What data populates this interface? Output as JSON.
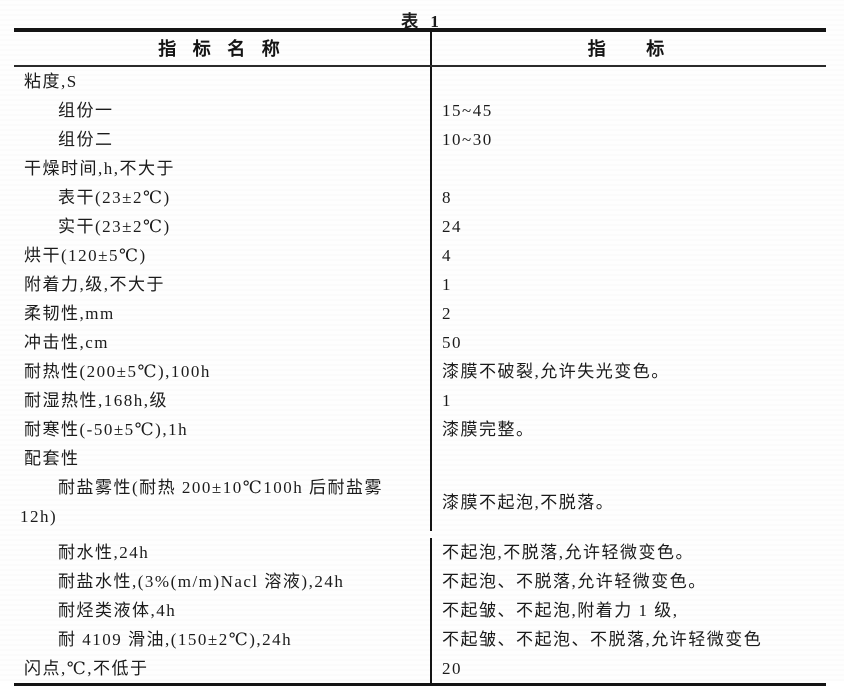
{
  "title": "表 1",
  "table": {
    "col1_header": "指 标 名 称",
    "col2_header": "指　 标",
    "rows": [
      {
        "label": "粘度,S",
        "indent": 0,
        "value": ""
      },
      {
        "label": "组份一",
        "indent": 1,
        "value": "15~45"
      },
      {
        "label": "组份二",
        "indent": 1,
        "value": "10~30"
      },
      {
        "label": "干燥时间,h,不大于",
        "indent": 0,
        "value": ""
      },
      {
        "label": "表干(23±2℃)",
        "indent": 1,
        "value": "8"
      },
      {
        "label": "实干(23±2℃)",
        "indent": 1,
        "value": "24"
      },
      {
        "label": "烘干(120±5℃)",
        "indent": 0,
        "value": "4"
      },
      {
        "label": "附着力,级,不大于",
        "indent": 0,
        "value": "1"
      },
      {
        "label": "柔韧性,mm",
        "indent": 0,
        "value": "2"
      },
      {
        "label": "冲击性,cm",
        "indent": 0,
        "value": "50"
      },
      {
        "label": "耐热性(200±5℃),100h",
        "indent": 0,
        "value": "漆膜不破裂,允许失光变色。"
      },
      {
        "label": "耐湿热性,168h,级",
        "indent": 0,
        "value": "1"
      },
      {
        "label": "耐寒性(-50±5℃),1h",
        "indent": 0,
        "value": "漆膜完整。"
      },
      {
        "label": "配套性",
        "indent": 0,
        "value": ""
      },
      {
        "label": "耐盐雾性(耐热 200±10℃100h 后耐盐雾",
        "label_line2": "12h)",
        "indent": 1,
        "value": "漆膜不起泡,不脱落。",
        "tall": true
      },
      {
        "label": "耐水性,24h",
        "indent": 1,
        "value": "不起泡,不脱落,允许轻微变色。"
      },
      {
        "label": "耐盐水性,(3%(m/m)Nacl 溶液),24h",
        "indent": 1,
        "value": "不起泡、不脱落,允许轻微变色。"
      },
      {
        "label": "耐烃类液体,4h",
        "indent": 1,
        "value": "不起皱、不起泡,附着力 1 级,"
      },
      {
        "label": "耐 4109 滑油,(150±2℃),24h",
        "indent": 1,
        "value": "不起皱、不起泡、不脱落,允许轻微变色"
      },
      {
        "label": "闪点,℃,不低于",
        "indent": 0,
        "value": "20"
      }
    ]
  }
}
